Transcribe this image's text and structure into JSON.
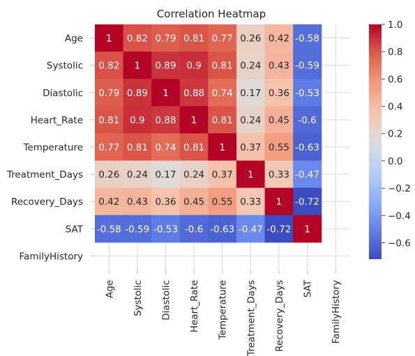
{
  "chart_data": {
    "type": "heatmap",
    "title": "Correlation Heatmap",
    "xlabel": "",
    "ylabel": "",
    "labels": [
      "Age",
      "Systolic",
      "Diastolic",
      "Heart_Rate",
      "Temperature",
      "Treatment_Days",
      "Recovery_Days",
      "SAT",
      "FamilyHistory"
    ],
    "matrix": [
      [
        1,
        0.82,
        0.79,
        0.81,
        0.77,
        0.26,
        0.42,
        -0.58,
        null
      ],
      [
        0.82,
        1,
        0.89,
        0.9,
        0.81,
        0.24,
        0.43,
        -0.59,
        null
      ],
      [
        0.79,
        0.89,
        1,
        0.88,
        0.74,
        0.17,
        0.36,
        -0.53,
        null
      ],
      [
        0.81,
        0.9,
        0.88,
        1,
        0.81,
        0.24,
        0.45,
        -0.6,
        null
      ],
      [
        0.77,
        0.81,
        0.74,
        0.81,
        1,
        0.37,
        0.55,
        -0.63,
        null
      ],
      [
        0.26,
        0.24,
        0.17,
        0.24,
        0.37,
        1,
        0.33,
        -0.47,
        null
      ],
      [
        0.42,
        0.43,
        0.36,
        0.45,
        0.55,
        0.33,
        1,
        -0.72,
        null
      ],
      [
        -0.58,
        -0.59,
        -0.53,
        -0.6,
        -0.63,
        -0.47,
        -0.72,
        1,
        null
      ],
      [
        null,
        null,
        null,
        null,
        null,
        null,
        null,
        null,
        null
      ]
    ],
    "colormap": "coolwarm",
    "vmin": -0.72,
    "vmax": 1.0,
    "colorbar_ticks": [
      "1.0",
      "0.8",
      "0.6",
      "0.4",
      "0.2",
      "0.0",
      "−0.2",
      "−0.4",
      "−0.6"
    ],
    "colorbar_tick_values": [
      1.0,
      0.8,
      0.6,
      0.4,
      0.2,
      0.0,
      -0.2,
      -0.4,
      -0.6
    ],
    "annotate": true,
    "grid": true
  }
}
